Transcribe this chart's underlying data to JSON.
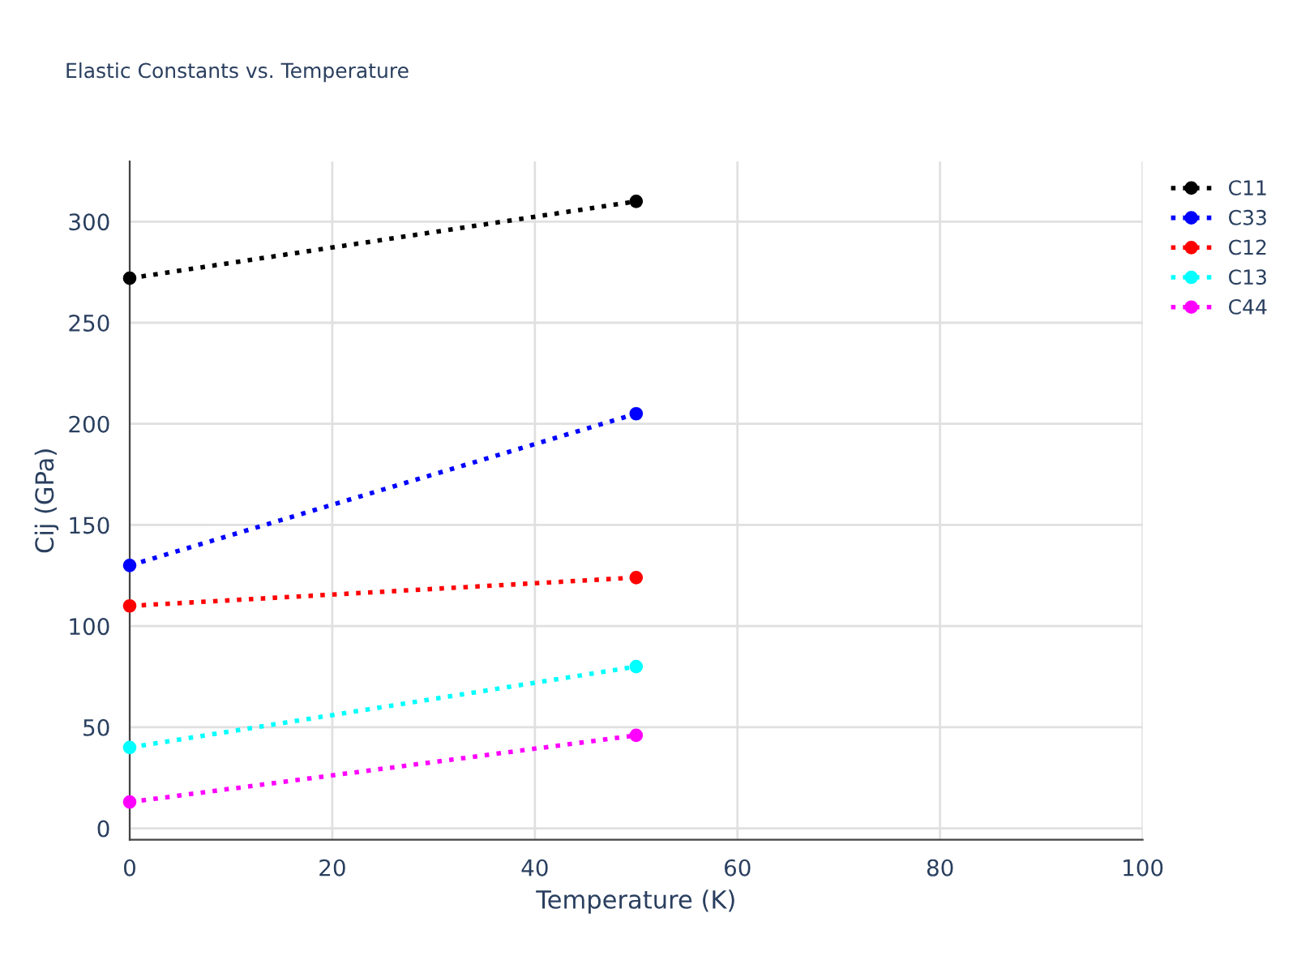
{
  "chart_data": {
    "type": "line",
    "title": "Elastic Constants vs. Temperature",
    "xlabel": "Temperature (K)",
    "ylabel": "Cij (GPa)",
    "xlim": [
      0,
      100
    ],
    "xticks": [
      0,
      20,
      40,
      60,
      80,
      100
    ],
    "ylim": [
      -5.6,
      329.7
    ],
    "yticks": [
      0,
      50,
      100,
      150,
      200,
      250,
      300
    ],
    "grid": true,
    "legend": "right",
    "marker": "circle",
    "line_style": "dotted",
    "x": [
      0,
      50
    ],
    "series": [
      {
        "name": "C11",
        "color": "#000000",
        "values": [
          272,
          310
        ]
      },
      {
        "name": "C33",
        "color": "#0000ff",
        "values": [
          130,
          205
        ]
      },
      {
        "name": "C12",
        "color": "#ff0000",
        "values": [
          110,
          124
        ]
      },
      {
        "name": "C13",
        "color": "#00ffff",
        "values": [
          40,
          80
        ]
      },
      {
        "name": "C44",
        "color": "#ff00ff",
        "values": [
          13,
          46
        ]
      }
    ]
  }
}
